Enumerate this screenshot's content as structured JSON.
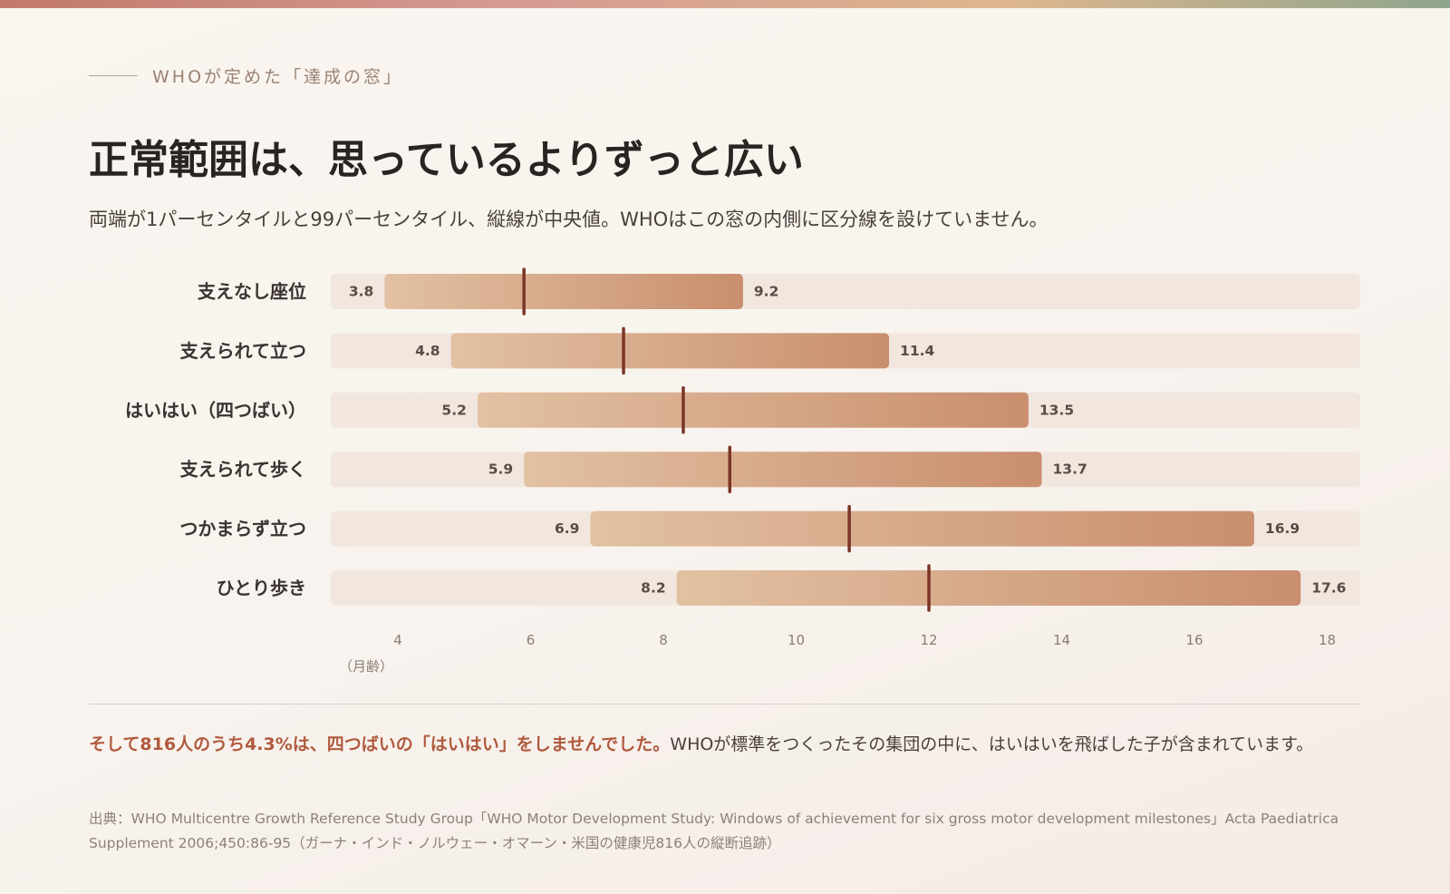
{
  "eyebrow": "WHOが定めた「達成の窓」",
  "title": "正常範囲は、思っているよりずっと広い",
  "subtitle": "両端が1パーセンタイルと99パーセンタイル、縦線が中央値。WHOはこの窓の内側に区分線を設けていません。",
  "chart_data": {
    "type": "bar",
    "orientation": "horizontal-range",
    "categories": [
      "支えなし座位",
      "支えられて立つ",
      "はいはい（四つばい）",
      "支えられて歩く",
      "つかまらず立つ",
      "ひとり歩き"
    ],
    "series": [
      {
        "name": "1パーセンタイル",
        "values": [
          3.8,
          4.8,
          5.2,
          5.9,
          6.9,
          8.2
        ]
      },
      {
        "name": "中央値",
        "values": [
          5.9,
          7.4,
          8.3,
          9.0,
          10.8,
          12.0
        ]
      },
      {
        "name": "99パーセンタイル",
        "values": [
          9.2,
          11.4,
          13.5,
          13.7,
          16.9,
          17.6
        ]
      }
    ],
    "x_ticks": [
      4,
      6,
      8,
      10,
      12,
      14,
      16,
      18
    ],
    "xlabel": "（月齢）",
    "xlim": [
      3,
      18.5
    ],
    "grid": false,
    "colors": {
      "bar_start": "#e2c1a3",
      "bar_end": "#c98f6e",
      "track": "#f1e7df",
      "median": "#7b3526",
      "label": "#3b3330",
      "value": "#5a4c45",
      "tick": "#8a7c74"
    }
  },
  "note": {
    "emphasis": "そして816人のうち4.3%は、四つばいの「はいはい」をしませんでした。",
    "rest": "WHOが標準をつくったその集団の中に、はいはいを飛ばした子が含まれています。"
  },
  "source": "出典：WHO Multicentre Growth Reference Study Group「WHO Motor Development Study: Windows of achievement for six gross motor development milestones」Acta Paediatrica Supplement 2006;450:86-95（ガーナ・インド・ノルウェー・オマーン・米国の健康児816人の縦断追跡）"
}
